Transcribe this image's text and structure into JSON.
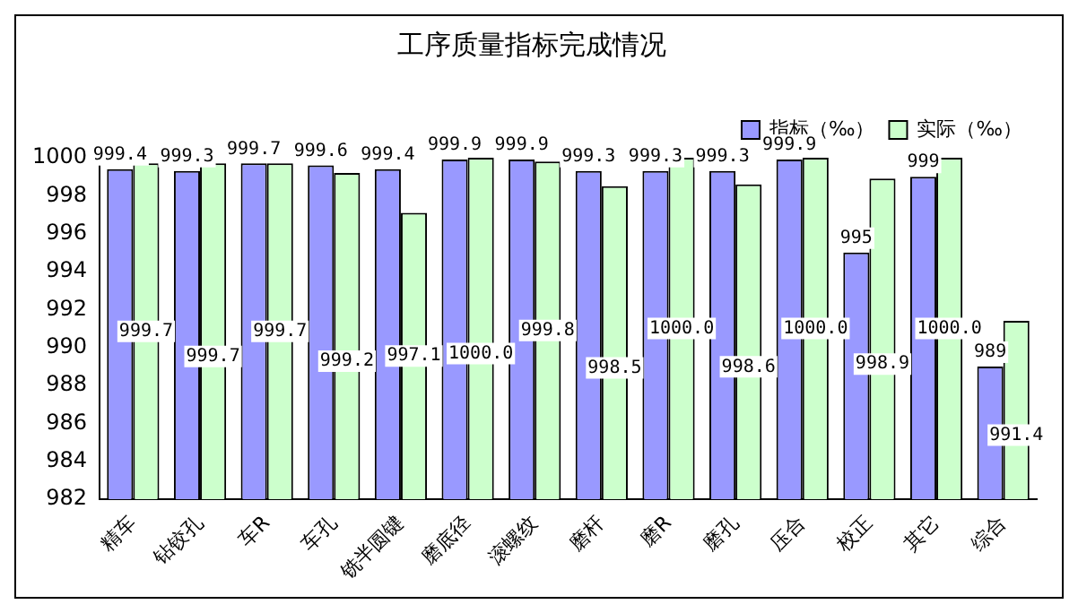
{
  "chart_data": {
    "type": "bar",
    "title": "工序质量指标完成情况",
    "categories": [
      "精车",
      "钻铰孔",
      "车R",
      "车孔",
      "铣半圆键",
      "磨底径",
      "滚螺纹",
      "磨杆",
      "磨R",
      "磨孔",
      "压合",
      "校正",
      "其它",
      "综合"
    ],
    "series": [
      {
        "name": "指标（‰）",
        "color": "#9999ff",
        "values": [
          999.4,
          999.3,
          999.7,
          999.6,
          999.4,
          999.9,
          999.9,
          999.3,
          999.3,
          999.3,
          999.9,
          995,
          999,
          989
        ],
        "value_labels": [
          "999.4",
          "999.3",
          "999.7",
          "999.6",
          "999.4",
          "999.9",
          "999.9",
          "999.3",
          "999.3",
          "999.3",
          "999.9",
          "995",
          "999",
          "989"
        ]
      },
      {
        "name": "实际（‰）",
        "color": "#ccffcc",
        "values": [
          999.7,
          999.7,
          999.7,
          999.2,
          997.1,
          1000.0,
          999.8,
          998.5,
          1000.0,
          998.6,
          1000.0,
          998.9,
          1000.0,
          991.4
        ],
        "value_labels": [
          "999.7",
          "999.7",
          "999.7",
          "999.2",
          "997.1",
          "1000.0",
          "999.8",
          "998.5",
          "1000.0",
          "998.6",
          "1000.0",
          "998.9",
          "1000.0",
          "991.4"
        ]
      }
    ],
    "ylim": [
      982,
      1000
    ],
    "yticks": [
      982,
      984,
      986,
      988,
      990,
      992,
      994,
      996,
      998,
      1000
    ],
    "grid": false,
    "legend": "top right"
  }
}
